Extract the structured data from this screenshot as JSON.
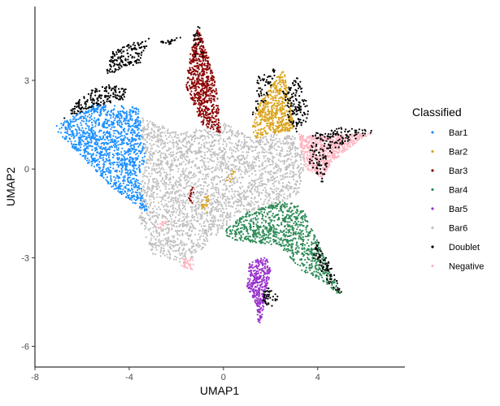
{
  "chart_data": {
    "type": "scatter",
    "title": "",
    "xlabel": "UMAP1",
    "ylabel": "UMAP2",
    "xlim": [
      -8,
      7.7
    ],
    "ylim": [
      -6.7,
      5.5
    ],
    "x_ticks": [
      -8,
      -4,
      0,
      4
    ],
    "x_tick_labels": [
      "-8",
      "-4",
      "0",
      "4"
    ],
    "y_ticks": [
      -6,
      -3,
      0,
      3
    ],
    "y_tick_labels": [
      "-6",
      "-3",
      "0",
      "3"
    ],
    "grid": false,
    "legend": {
      "title": "Classified",
      "placement": "right",
      "entries": [
        {
          "label": "Bar1",
          "color": "#1e90ff"
        },
        {
          "label": "Bar2",
          "color": "#daa520"
        },
        {
          "label": "Bar3",
          "color": "#8b0000"
        },
        {
          "label": "Bar4",
          "color": "#2e8b57"
        },
        {
          "label": "Bar5",
          "color": "#9932cc"
        },
        {
          "label": "Bar6",
          "color": "#c0c0c0"
        },
        {
          "label": "Doublet",
          "color": "#000000"
        },
        {
          "label": "Negative",
          "color": "#ffb6c1"
        }
      ]
    },
    "series": [
      {
        "name": "Bar1",
        "color": "#1e90ff",
        "regions": [
          {
            "polygon": [
              [
                -7.2,
                1.4
              ],
              [
                -5.5,
                2.2
              ],
              [
                -3.6,
                2.1
              ],
              [
                -3.3,
                0.4
              ],
              [
                -3.6,
                -0.3
              ],
              [
                -3.2,
                -1.5
              ],
              [
                -4.8,
                -0.6
              ]
            ],
            "count": 1300
          }
        ]
      },
      {
        "name": "Bar2",
        "color": "#daa520",
        "regions": [
          {
            "polygon": [
              [
                2.5,
                3.4
              ],
              [
                2.7,
                3.0
              ],
              [
                3.0,
                1.3
              ],
              [
                2.1,
                1.2
              ],
              [
                1.3,
                1.9
              ]
            ],
            "count": 500
          },
          {
            "polygon": [
              [
                1.2,
                1.4
              ],
              [
                1.4,
                2.0
              ],
              [
                1.9,
                1.2
              ],
              [
                1.4,
                1.0
              ]
            ],
            "count": 50
          },
          {
            "polygon": [
              [
                -0.9,
                -1.0
              ],
              [
                -0.6,
                -0.8
              ],
              [
                -0.7,
                -1.5
              ],
              [
                -1.0,
                -1.3
              ]
            ],
            "count": 25
          },
          {
            "polygon": [
              [
                0.2,
                -0.2
              ],
              [
                0.5,
                0.0
              ],
              [
                0.4,
                -0.5
              ],
              [
                0.1,
                -0.4
              ]
            ],
            "count": 10
          }
        ]
      },
      {
        "name": "Bar3",
        "color": "#8b0000",
        "regions": [
          {
            "polygon": [
              [
                -1.1,
                4.8
              ],
              [
                -0.7,
                4.0
              ],
              [
                -0.3,
                2.8
              ],
              [
                -0.1,
                1.2
              ],
              [
                -0.9,
                1.5
              ],
              [
                -1.6,
                2.8
              ],
              [
                -1.4,
                4.0
              ]
            ],
            "count": 650
          },
          {
            "polygon": [
              [
                -1.4,
                -0.7
              ],
              [
                -1.2,
                -0.5
              ],
              [
                -1.3,
                -1.2
              ],
              [
                -1.5,
                -1.0
              ]
            ],
            "count": 15
          }
        ]
      },
      {
        "name": "Bar4",
        "color": "#2e8b57",
        "regions": [
          {
            "polygon": [
              [
                0.9,
                -1.5
              ],
              [
                2.4,
                -1.1
              ],
              [
                3.3,
                -1.2
              ],
              [
                4.3,
                -3.0
              ],
              [
                5.0,
                -4.3
              ],
              [
                4.2,
                -3.8
              ],
              [
                3.4,
                -3.5
              ],
              [
                2.4,
                -2.6
              ],
              [
                0.5,
                -2.4
              ],
              [
                -0.1,
                -2.2
              ]
            ],
            "count": 900
          }
        ]
      },
      {
        "name": "Bar5",
        "color": "#9932cc",
        "regions": [
          {
            "polygon": [
              [
                1.1,
                -3.2
              ],
              [
                1.8,
                -2.9
              ],
              [
                2.0,
                -3.4
              ],
              [
                1.8,
                -4.4
              ],
              [
                1.5,
                -5.5
              ],
              [
                1.4,
                -4.6
              ],
              [
                1.0,
                -4.0
              ]
            ],
            "count": 350
          }
        ]
      },
      {
        "name": "Bar6",
        "color": "#c0c0c0",
        "regions": [
          {
            "polygon": [
              [
                -3.6,
                1.8
              ],
              [
                -1.8,
                1.2
              ],
              [
                0.0,
                1.6
              ],
              [
                1.3,
                1.0
              ],
              [
                2.2,
                1.2
              ],
              [
                3.0,
                1.1
              ],
              [
                3.5,
                0.3
              ],
              [
                3.2,
                -0.8
              ],
              [
                2.2,
                -1.3
              ],
              [
                1.2,
                -1.4
              ],
              [
                0.5,
                -1.6
              ],
              [
                -0.6,
                -2.5
              ],
              [
                -1.6,
                -3.2
              ],
              [
                -3.0,
                -2.9
              ],
              [
                -3.6,
                -1.6
              ],
              [
                -3.5,
                -0.5
              ],
              [
                -3.3,
                0.5
              ]
            ],
            "count": 2600
          }
        ]
      },
      {
        "name": "Doublet",
        "color": "#000000",
        "regions": [
          {
            "polygon": [
              [
                -4.7,
                4.0
              ],
              [
                -3.4,
                4.4
              ],
              [
                -3.1,
                4.5
              ],
              [
                -3.5,
                3.6
              ],
              [
                -4.5,
                3.3
              ],
              [
                -5.0,
                3.2
              ]
            ],
            "count": 160
          },
          {
            "polygon": [
              [
                -6.8,
                1.7
              ],
              [
                -6.0,
                2.5
              ],
              [
                -5.0,
                2.9
              ],
              [
                -4.0,
                2.7
              ],
              [
                -4.3,
                2.3
              ],
              [
                -5.5,
                2.1
              ]
            ],
            "count": 180
          },
          {
            "polygon": [
              [
                1.5,
                3.3
              ],
              [
                2.3,
                3.4
              ],
              [
                1.8,
                2.2
              ],
              [
                1.2,
                1.8
              ]
            ],
            "count": 60
          },
          {
            "polygon": [
              [
                2.5,
                2.6
              ],
              [
                3.2,
                3.2
              ],
              [
                3.7,
                1.8
              ],
              [
                3.1,
                1.2
              ],
              [
                2.8,
                1.6
              ]
            ],
            "count": 140
          },
          {
            "polygon": [
              [
                -1.3,
                4.7
              ],
              [
                -1.0,
                4.9
              ],
              [
                -0.8,
                3.8
              ],
              [
                -1.2,
                3.6
              ]
            ],
            "count": 20
          },
          {
            "polygon": [
              [
                3.8,
                1.2
              ],
              [
                5.0,
                1.4
              ],
              [
                6.5,
                1.3
              ],
              [
                5.2,
                0.9
              ],
              [
                4.5,
                0.5
              ],
              [
                4.2,
                -0.5
              ],
              [
                3.6,
                0.2
              ]
            ],
            "count": 180
          },
          {
            "polygon": [
              [
                4.0,
                -2.4
              ],
              [
                4.5,
                -3.2
              ],
              [
                5.1,
                -4.3
              ],
              [
                4.5,
                -4.0
              ],
              [
                3.8,
                -3.0
              ]
            ],
            "count": 80
          },
          {
            "polygon": [
              [
                1.8,
                -3.9
              ],
              [
                2.4,
                -4.4
              ],
              [
                2.1,
                -4.7
              ],
              [
                1.6,
                -4.5
              ]
            ],
            "count": 40
          },
          {
            "polygon": [
              [
                -2.8,
                4.3
              ],
              [
                -1.7,
                4.5
              ],
              [
                -2.2,
                4.2
              ]
            ],
            "count": 20
          }
        ]
      },
      {
        "name": "Negative",
        "color": "#ffb6c1",
        "regions": [
          {
            "polygon": [
              [
                3.2,
                1.2
              ],
              [
                4.1,
                1.1
              ],
              [
                5.2,
                1.2
              ],
              [
                6.3,
                1.2
              ],
              [
                5.3,
                0.7
              ],
              [
                4.6,
                0.2
              ],
              [
                4.2,
                -0.3
              ],
              [
                3.5,
                0.0
              ],
              [
                3.3,
                0.6
              ]
            ],
            "count": 650
          },
          {
            "polygon": [
              [
                -1.8,
                -3.0
              ],
              [
                -1.2,
                -3.0
              ],
              [
                -1.3,
                -3.4
              ],
              [
                -1.8,
                -3.3
              ]
            ],
            "count": 35
          },
          {
            "polygon": [
              [
                -2.8,
                -1.8
              ],
              [
                -2.4,
                -1.7
              ],
              [
                -2.4,
                -2.1
              ],
              [
                -2.8,
                -2.0
              ]
            ],
            "count": 15
          }
        ]
      }
    ]
  }
}
